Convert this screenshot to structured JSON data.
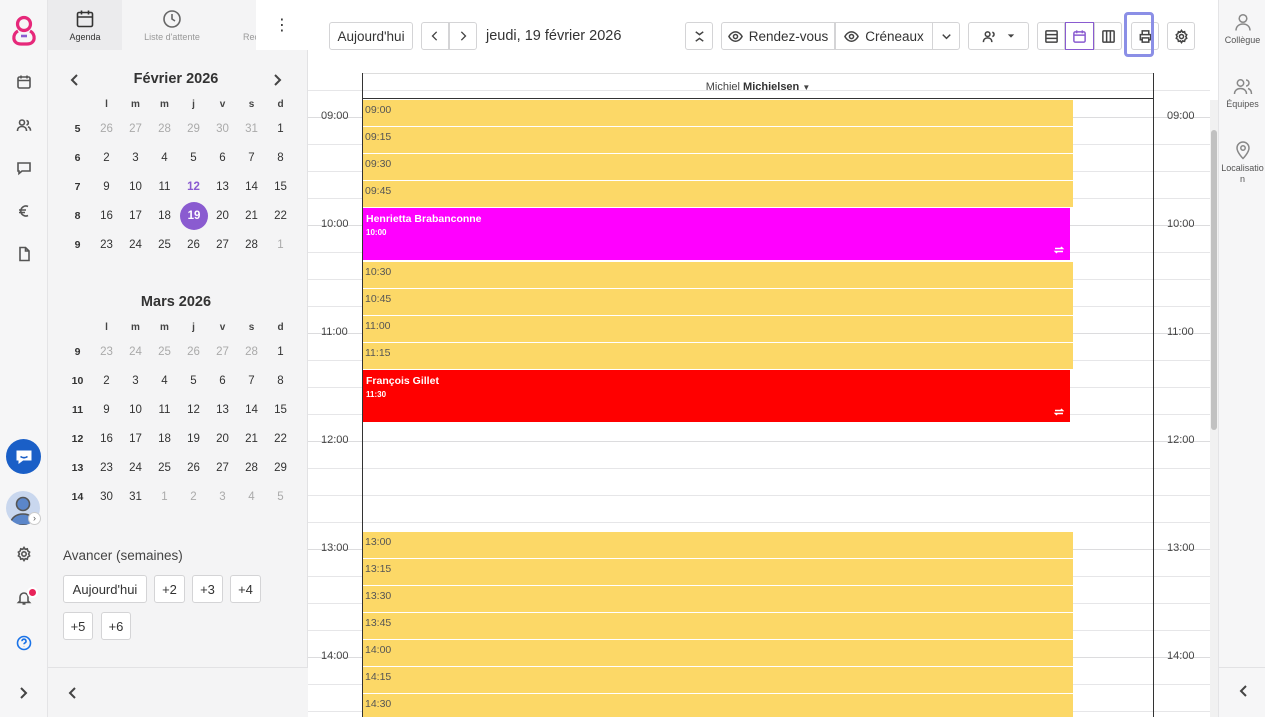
{
  "app": {
    "brand_color": "#e6287a",
    "accent": "#8a5bd0",
    "chat_color": "#1a5fc7"
  },
  "rail": {
    "icons": [
      "calendar-icon",
      "users-icon",
      "chat-icon",
      "euro-icon",
      "document-icon",
      "settings-icon",
      "bell-icon",
      "help-icon"
    ],
    "expand": "›"
  },
  "left_tabs": [
    {
      "label": "Agenda",
      "icon": "calendar-icon"
    },
    {
      "label": "Liste d'attente",
      "icon": "clock-icon"
    },
    {
      "label": "Rec",
      "icon": ""
    }
  ],
  "kebab": "⋮",
  "calendars": [
    {
      "title": "Février 2026",
      "day_headers": [
        "l",
        "m",
        "m",
        "j",
        "v",
        "s",
        "d"
      ],
      "weeks": [
        {
          "wk": "5",
          "days": [
            "26",
            "27",
            "28",
            "29",
            "30",
            "31",
            "1"
          ]
        },
        {
          "wk": "6",
          "days": [
            "2",
            "3",
            "4",
            "5",
            "6",
            "7",
            "8"
          ]
        },
        {
          "wk": "7",
          "days": [
            "9",
            "10",
            "11",
            "12",
            "13",
            "14",
            "15"
          ]
        },
        {
          "wk": "8",
          "days": [
            "16",
            "17",
            "18",
            "19",
            "20",
            "21",
            "22"
          ]
        },
        {
          "wk": "9",
          "days": [
            "23",
            "24",
            "25",
            "26",
            "27",
            "28",
            "1"
          ]
        }
      ],
      "selected": "19",
      "today": "12"
    },
    {
      "title": "Mars 2026",
      "day_headers": [
        "l",
        "m",
        "m",
        "j",
        "v",
        "s",
        "d"
      ],
      "weeks": [
        {
          "wk": "9",
          "days": [
            "23",
            "24",
            "25",
            "26",
            "27",
            "28",
            "1"
          ]
        },
        {
          "wk": "10",
          "days": [
            "2",
            "3",
            "4",
            "5",
            "6",
            "7",
            "8"
          ]
        },
        {
          "wk": "11",
          "days": [
            "9",
            "10",
            "11",
            "12",
            "13",
            "14",
            "15"
          ]
        },
        {
          "wk": "12",
          "days": [
            "16",
            "17",
            "18",
            "19",
            "20",
            "21",
            "22"
          ]
        },
        {
          "wk": "13",
          "days": [
            "23",
            "24",
            "25",
            "26",
            "27",
            "28",
            "29"
          ]
        },
        {
          "wk": "14",
          "days": [
            "30",
            "31",
            "1",
            "2",
            "3",
            "4",
            "5"
          ]
        }
      ]
    }
  ],
  "advance": {
    "title": "Avancer (semaines)",
    "buttons": [
      "Aujourd'hui",
      "+2",
      "+3",
      "+4",
      "+5",
      "+6"
    ]
  },
  "toolbar": {
    "today": "Aujourd'hui",
    "date": "jeudi, 19 février 2026",
    "rendezvous": "Rendez-vous",
    "creneaux": "Créneaux"
  },
  "resource": {
    "first": "Michiel",
    "last": "Michielsen"
  },
  "time_labels": [
    "09:00",
    "10:00",
    "11:00",
    "12:00",
    "13:00",
    "14:00"
  ],
  "slots": [
    "09:00",
    "09:15",
    "09:30",
    "09:45",
    "10:30",
    "10:45",
    "11:00",
    "11:15",
    "13:00",
    "13:15",
    "13:30",
    "13:45",
    "14:00",
    "14:15",
    "14:30"
  ],
  "events": [
    {
      "name": "Henrietta Brabanconne",
      "time": "10:00",
      "color": "#ff00ff"
    },
    {
      "name": "François Gillet",
      "time": "11:30",
      "color": "#ff0000"
    }
  ],
  "right_rail": [
    {
      "label": "Collègue",
      "icon": "person-icon"
    },
    {
      "label": "Équipes",
      "icon": "team-icon"
    },
    {
      "label": "Localisation",
      "icon": "location-pin-icon"
    }
  ]
}
